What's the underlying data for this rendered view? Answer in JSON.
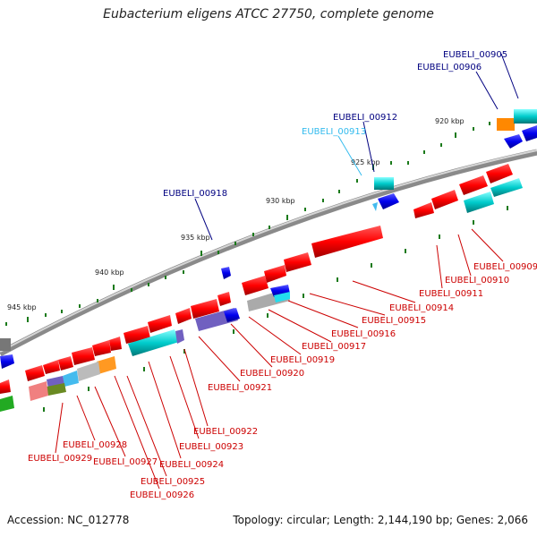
{
  "title": "Eubacterium eligens ATCC 27750, complete genome",
  "accession": "Accession: NC_012778",
  "topology": "Topology: circular; Length: 2,144,190 bp; Genes: 2,066",
  "ticks": [
    "920 kbp",
    "925 kbp",
    "930 kbp",
    "935 kbp",
    "940 kbp",
    "945 kbp"
  ],
  "labels_inner": [
    "EUBELI_00905",
    "EUBELI_00906",
    "EUBELI_00912",
    "EUBELI_00913",
    "EUBELI_00918"
  ],
  "labels_outer": [
    "EUBELI_00909",
    "EUBELI_00910",
    "EUBELI_00911",
    "EUBELI_00914",
    "EUBELI_00915",
    "EUBELI_00916",
    "EUBELI_00917",
    "EUBELI_00919",
    "EUBELI_00920",
    "EUBELI_00921",
    "EUBELI_00922",
    "EUBELI_00923",
    "EUBELI_00924",
    "EUBELI_00925",
    "EUBELI_00926",
    "EUBELI_00927",
    "EUBELI_00928",
    "EUBELI_00929"
  ],
  "colors": {
    "red": "#ff0000",
    "cyan": "#00cccc",
    "blue": "#0000ee",
    "navy": "#000080",
    "label_red": "#cc0000",
    "label_lightblue": "#33bbee",
    "gray": "#999999",
    "tick_green": "#1a7a1a",
    "orange": "#ff8800",
    "purple": "#7060c0",
    "pink": "#f08080"
  }
}
